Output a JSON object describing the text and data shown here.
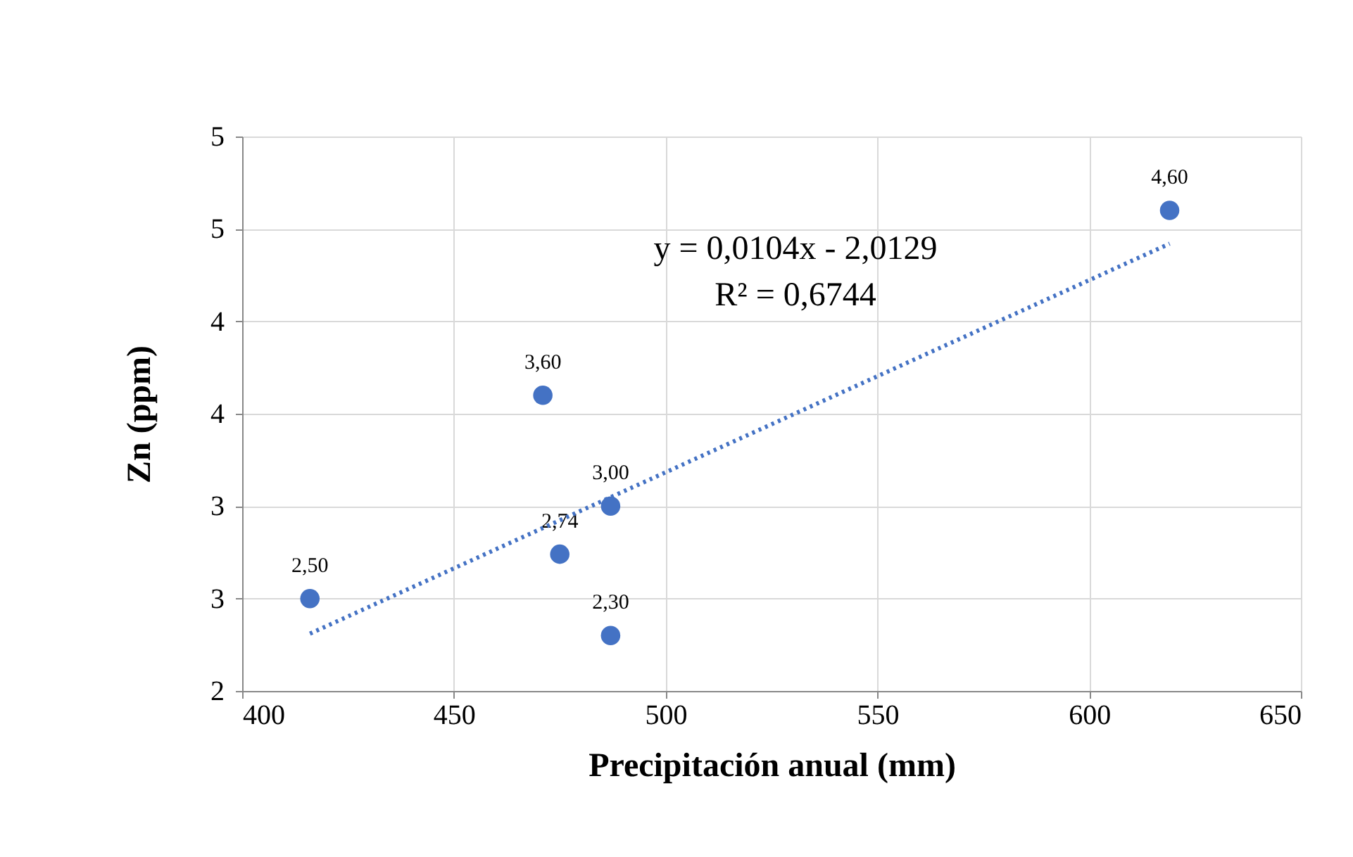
{
  "chart_data": {
    "type": "scatter",
    "xlabel": "Precipitación anual (mm)",
    "ylabel": "Zn (ppm)",
    "annotations": [
      "y = 0,0104x - 2,0129",
      "R² = 0,6744"
    ],
    "xlim": [
      400,
      650
    ],
    "xticks": [
      400,
      450,
      500,
      550,
      600,
      650
    ],
    "ylim": [
      2,
      5
    ],
    "yticks": [
      2,
      {
        "value": 2.5,
        "label": "3"
      },
      3,
      {
        "value": 3.5,
        "label": "4"
      },
      4,
      {
        "value": 4.5,
        "label": "5"
      },
      5
    ],
    "grid": true,
    "series": [
      {
        "type": "scatter",
        "color": "#4472c4",
        "marker": "circle",
        "x": [
          416,
          471,
          475,
          487,
          487,
          619
        ],
        "values": [
          2.5,
          3.6,
          2.74,
          3.0,
          2.3,
          4.6
        ],
        "value_labels": [
          "2,50",
          "3,60",
          "2,74",
          "3,00",
          "2,30",
          "4,60"
        ]
      },
      {
        "type": "line",
        "color": "#4472c4",
        "line_style": "dotted",
        "x": [
          416,
          619
        ],
        "values": [
          2.31,
          4.42
        ]
      }
    ]
  }
}
